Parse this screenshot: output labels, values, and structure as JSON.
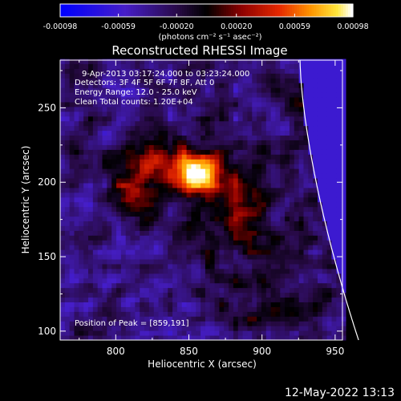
{
  "chart_data": {
    "type": "heatmap",
    "title": "Reconstructed RHESSI Image",
    "xlabel": "Heliocentric X (arcsec)",
    "ylabel": "Heliocentric Y (arcsec)",
    "xlim": [
      762,
      955
    ],
    "ylim": [
      94,
      282
    ],
    "x_ticks": [
      800,
      850,
      900,
      950
    ],
    "y_ticks": [
      100,
      150,
      200,
      250
    ],
    "colorbar": {
      "label": "(photons cm⁻² s⁻¹ asec⁻²)",
      "range": [
        -0.00098,
        0.00098
      ],
      "tick_values": [
        -0.00098,
        -0.00059,
        -0.0002,
        0.0002,
        0.00059,
        0.00098
      ],
      "tick_labels": [
        "-0.00098",
        "-0.00059",
        "-0.00020",
        "0.00020",
        "0.00059",
        "0.00098"
      ],
      "colormap": "blue-black-red-yellow-white"
    },
    "annotations": [
      "9-Apr-2013 03:17:24.000 to 03:23:24.000",
      "Detectors: 3F 4F 5F 6F 7F 8F, Att 0",
      "Energy Range: 12.0 - 25.0 keV",
      "Clean    Total counts: 1.20E+04",
      "Position of Peak = [859,191]"
    ],
    "peak": [
      859,
      191
    ],
    "emission_components": [
      {
        "x": 856,
        "y": 205,
        "sx": 9,
        "sy": 9,
        "amp": 0.00098
      },
      {
        "x": 835,
        "y": 210,
        "sx": 26,
        "sy": 13,
        "amp": 0.0006
      },
      {
        "x": 880,
        "y": 185,
        "sx": 18,
        "sy": 22,
        "amp": 0.0004
      },
      {
        "x": 812,
        "y": 188,
        "sx": 10,
        "sy": 12,
        "amp": 0.0003
      },
      {
        "x": 900,
        "y": 130,
        "sx": 26,
        "sy": 26,
        "amp": 0.00025
      },
      {
        "x": 935,
        "y": 240,
        "sx": 18,
        "sy": 30,
        "amp": 0.0002
      }
    ],
    "limb": {
      "present": true,
      "color": "#ffffff"
    },
    "grid": false
  },
  "footer": {
    "timestamp": "12-May-2022 13:13"
  }
}
